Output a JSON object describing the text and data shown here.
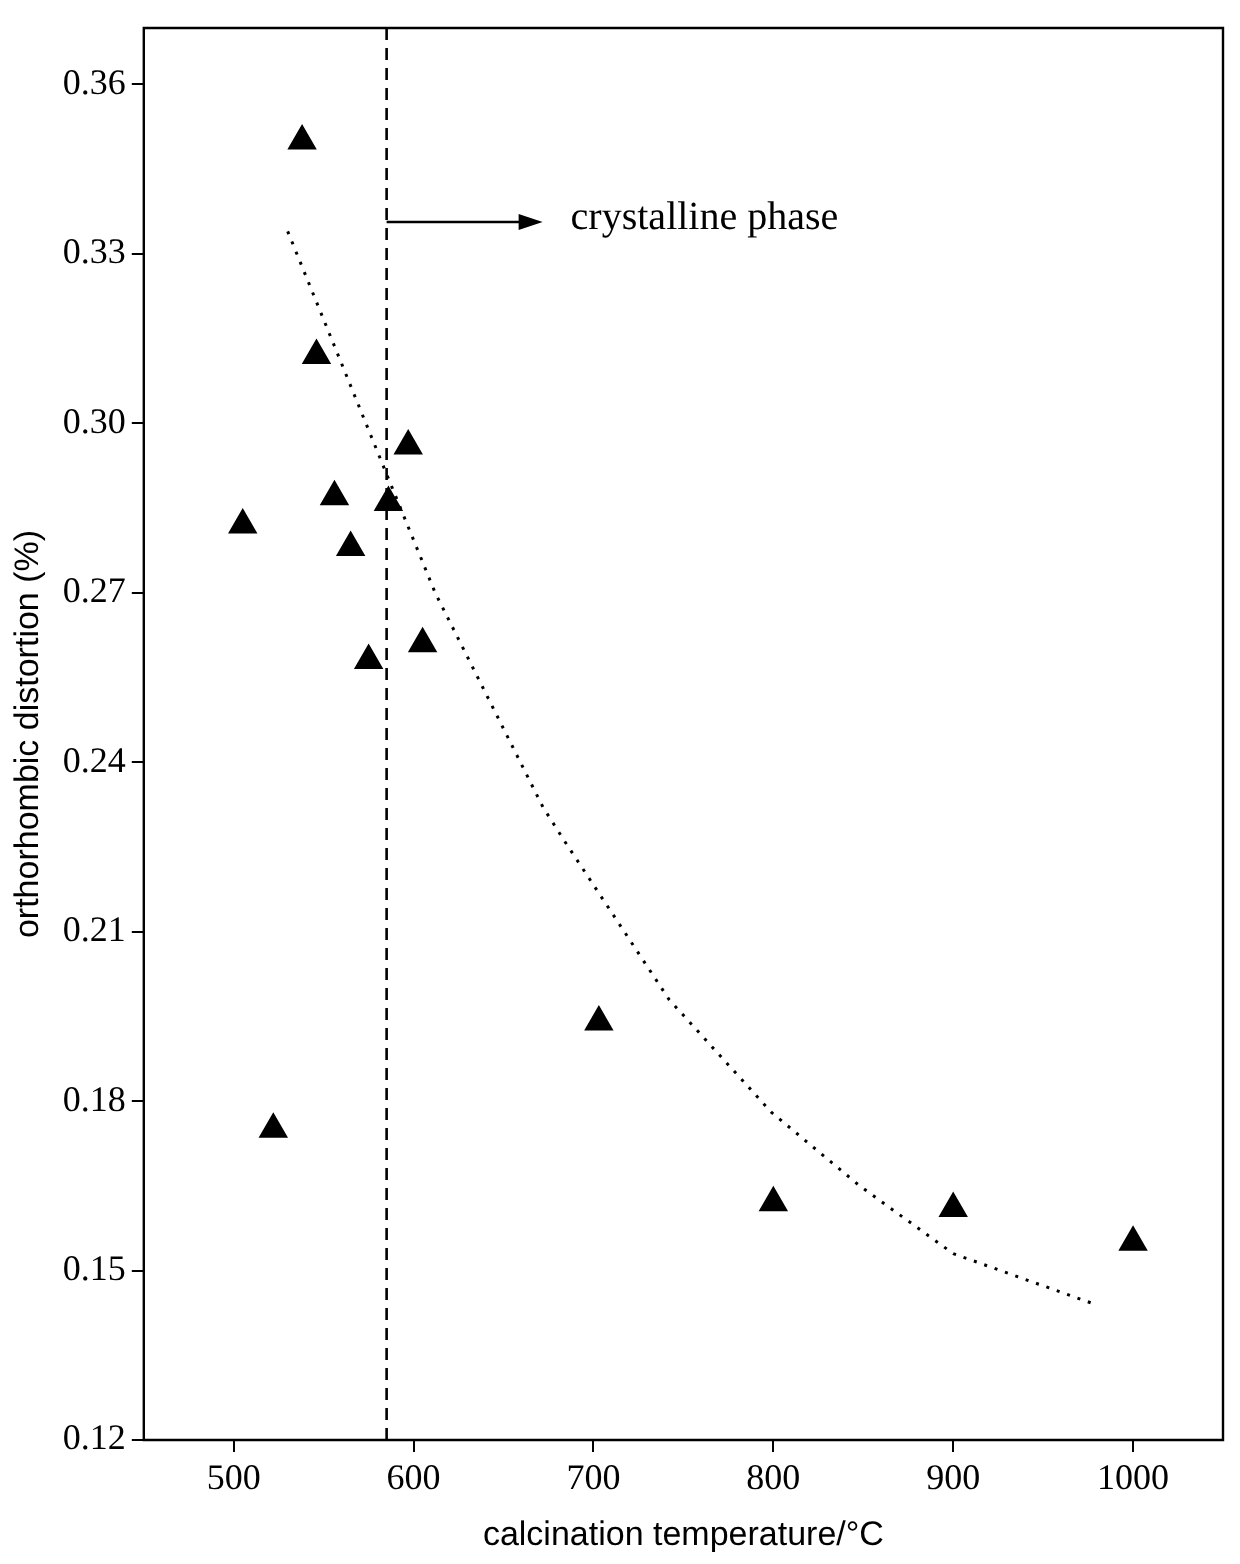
{
  "chart_data": {
    "type": "scatter",
    "xlabel": "calcination temperature/°C",
    "ylabel": "orthorhombic distortion (%)",
    "xlim": [
      450,
      1050
    ],
    "xticks": [
      500,
      600,
      700,
      800,
      900,
      1000
    ],
    "ylim": [
      0.12,
      0.37
    ],
    "yticks": [
      0.12,
      0.15,
      0.18,
      0.21,
      0.24,
      0.27,
      {
        "value": 0.3,
        "label": "0.30"
      },
      0.33,
      0.36
    ],
    "grid": false,
    "legend": false,
    "marker": "triangle",
    "series": [
      {
        "color": "#000000",
        "x": [
          505,
          522,
          538,
          546,
          556,
          565,
          575,
          586,
          597,
          605,
          703,
          800,
          900,
          1000
        ],
        "values": [
          0.282,
          0.175,
          0.35,
          0.312,
          0.287,
          0.278,
          0.258,
          0.286,
          0.296,
          0.261,
          0.194,
          0.162,
          0.161,
          0.155
        ]
      },
      {
        "type": "line",
        "color": "#000000",
        "marker": "none",
        "line_style": "dotted",
        "x": [
          530,
          585,
          612,
          672,
          684,
          742,
          799,
          848,
          900,
          979
        ],
        "values": [
          0.334,
          0.291,
          0.27,
          0.232,
          0.226,
          0.198,
          0.178,
          0.165,
          0.153,
          0.144
        ]
      }
    ],
    "ref_lines": [
      {
        "axis": "x",
        "value": 585,
        "label": "crystalline phase",
        "color": "#000000",
        "line_style": "dashed"
      }
    ]
  }
}
